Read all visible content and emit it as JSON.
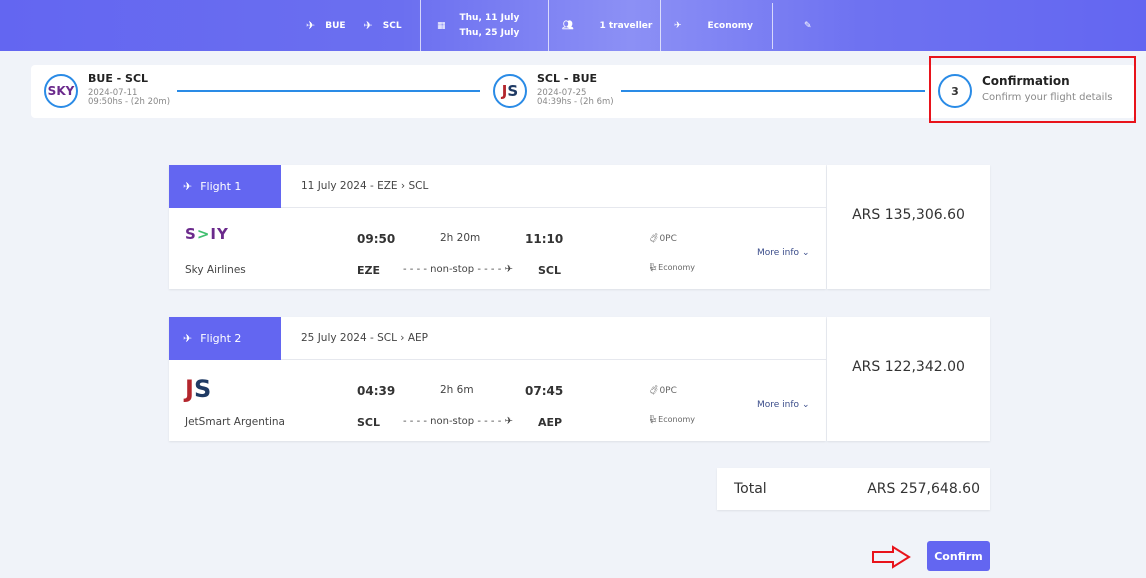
{
  "search_bar": {
    "origin": "BUE",
    "destination": "SCL",
    "date_out": "Thu, 11 July",
    "date_return": "Thu, 25 July",
    "travellers": "1 traveller",
    "cabin": "Economy"
  },
  "stepper": {
    "steps": [
      {
        "title": "BUE - SCL",
        "date": "2024-07-11",
        "time": "09:50hs - (2h 20m)",
        "logo": "SKY"
      },
      {
        "title": "SCL - BUE",
        "date": "2024-07-25",
        "time": "04:39hs - (2h 6m)",
        "logo": "JS"
      },
      {
        "number": "3",
        "title": "Confirmation",
        "subtitle": "Confirm your flight details"
      }
    ]
  },
  "flights": [
    {
      "label": "Flight 1",
      "date": "11 July 2024 - EZE",
      "dest_header": "SCL",
      "logo": "SKY",
      "airline": "Sky Airlines",
      "dep_time": "09:50",
      "duration": "2h 20m",
      "arr_time": "11:10",
      "dep_airport": "EZE",
      "stops": "- - - - non-stop - - - -",
      "arr_airport": "SCL",
      "baggage": "0PC",
      "cabin": "Economy",
      "more_info": "More info",
      "price": "ARS 135,306.60"
    },
    {
      "label": "Flight 2",
      "date": "25 July 2024 - SCL",
      "dest_header": "AEP",
      "logo": "JS",
      "airline": "JetSmart Argentina",
      "dep_time": "04:39",
      "duration": "2h 6m",
      "arr_time": "07:45",
      "dep_airport": "SCL",
      "stops": "- - - - non-stop - - - -",
      "arr_airport": "AEP",
      "baggage": "0PC",
      "cabin": "Economy",
      "more_info": "More info",
      "price": "ARS 122,342.00"
    }
  ],
  "total": {
    "label": "Total",
    "value": "ARS 257,648.60"
  },
  "confirm_label": "Confirm",
  "colors": {
    "accent": "#6366f1",
    "line": "#2a8be6",
    "annotation": "#e8131b",
    "sky": "#6b2a8c",
    "jetsmart_red": "#b3262d",
    "jetsmart_blue": "#1f3a64"
  }
}
